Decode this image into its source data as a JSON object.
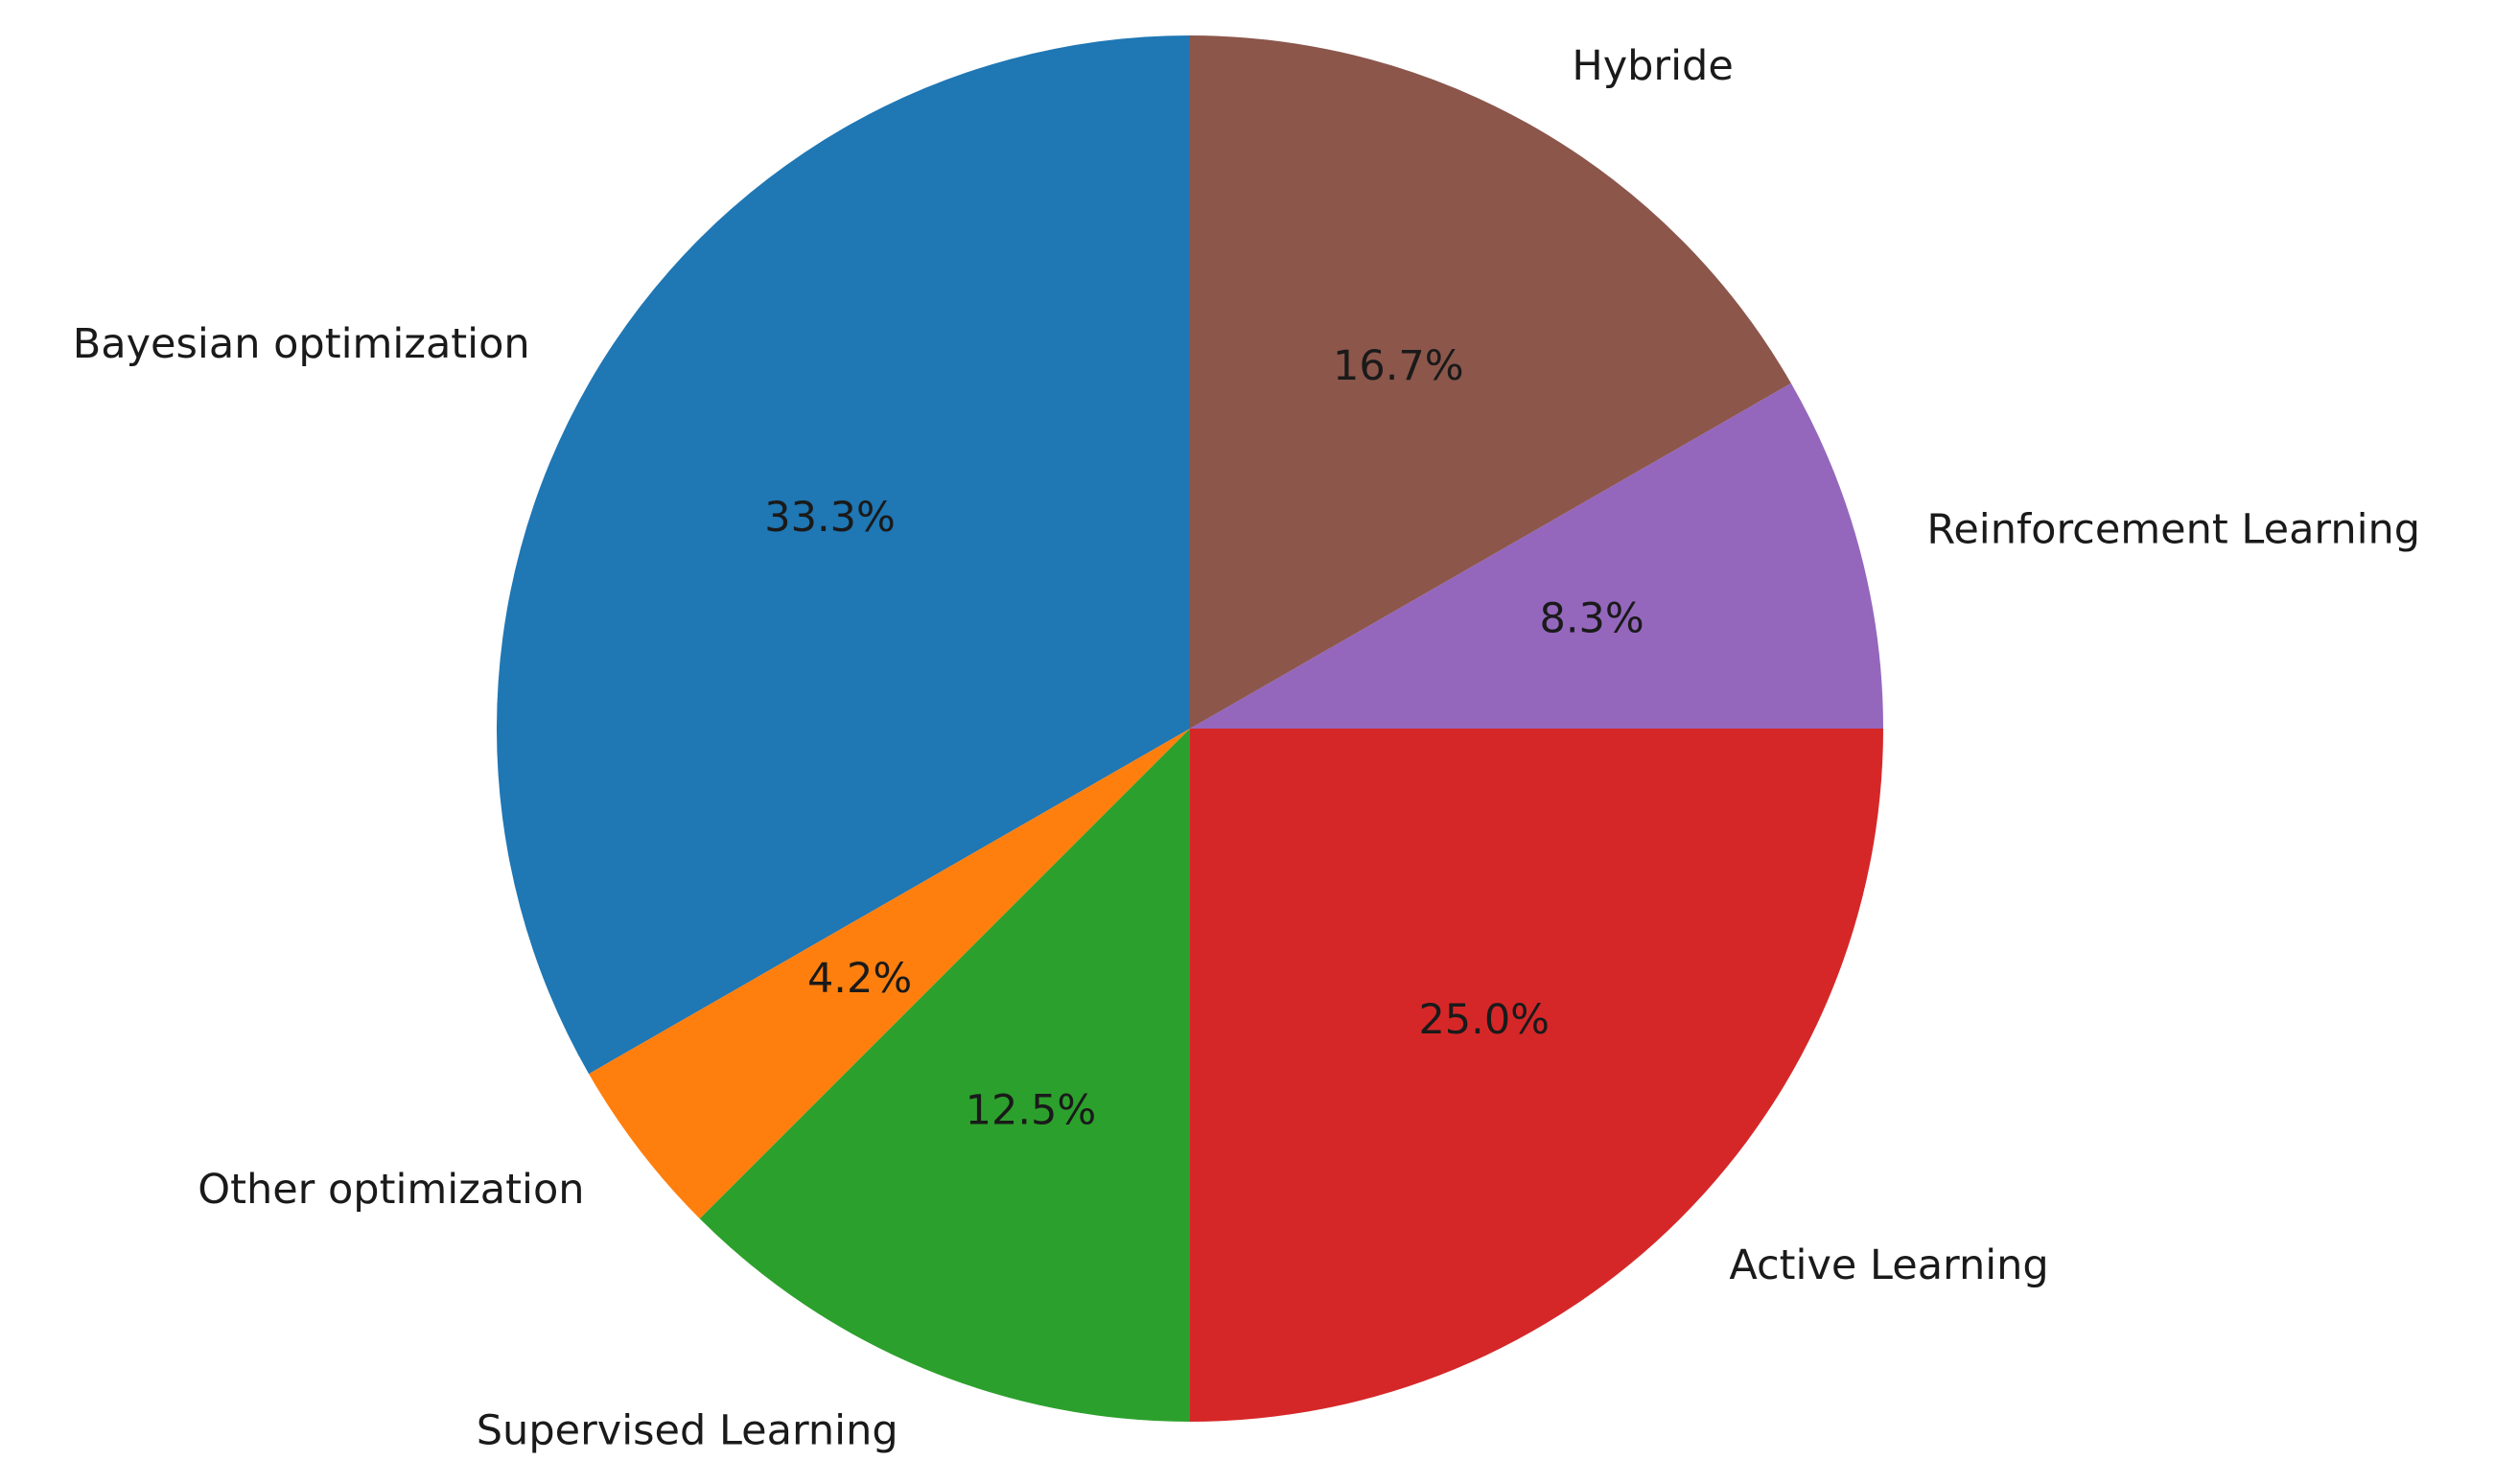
{
  "chart_data": {
    "type": "pie",
    "categories": [
      "Bayesian optimization",
      "Other optimization",
      "Supervised Learning",
      "Active Learning",
      "Reinforcement Learning",
      "Hybride"
    ],
    "values": [
      33.3,
      4.2,
      12.5,
      25.0,
      8.3,
      16.7
    ],
    "value_labels": [
      "33.3%",
      "4.2%",
      "12.5%",
      "25.0%",
      "8.3%",
      "16.7%"
    ],
    "colors": [
      "#1f77b4",
      "#ff7f0e",
      "#2ca02c",
      "#d62728",
      "#9467bd",
      "#8c564b"
    ]
  }
}
